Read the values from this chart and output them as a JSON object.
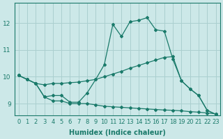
{
  "xlabel": "Humidex (Indice chaleur)",
  "bg_color": "#cce8e8",
  "grid_color": "#aacfcf",
  "line_color": "#1a7a6a",
  "xlim": [
    -0.5,
    23.5
  ],
  "ylim": [
    8.55,
    12.75
  ],
  "yticks": [
    9,
    10,
    11,
    12
  ],
  "xticks": [
    0,
    1,
    2,
    3,
    4,
    5,
    6,
    7,
    8,
    9,
    10,
    11,
    12,
    13,
    14,
    15,
    16,
    17,
    18,
    19,
    20,
    21,
    22,
    23
  ],
  "line_jagged_x": [
    0,
    1,
    2,
    3,
    4,
    5,
    6,
    7,
    8,
    9,
    10,
    11,
    12,
    13,
    14,
    15,
    16,
    17,
    18,
    19,
    20,
    21,
    22,
    23
  ],
  "line_jagged_y": [
    10.05,
    9.9,
    9.75,
    9.25,
    9.3,
    9.3,
    9.05,
    9.05,
    9.4,
    9.9,
    10.45,
    11.95,
    11.5,
    12.05,
    12.1,
    12.2,
    11.75,
    11.7,
    10.65,
    9.85,
    9.55,
    9.3,
    8.75,
    8.6
  ],
  "line_upper_x": [
    0,
    1,
    2,
    3,
    4,
    5,
    6,
    7,
    8,
    9,
    10,
    11,
    12,
    13,
    14,
    15,
    16,
    17,
    18,
    19,
    20,
    21,
    22,
    23
  ],
  "line_upper_y": [
    10.05,
    9.9,
    9.75,
    9.7,
    9.75,
    9.75,
    9.78,
    9.8,
    9.85,
    9.9,
    10.0,
    10.1,
    10.2,
    10.32,
    10.42,
    10.52,
    10.62,
    10.72,
    10.75,
    9.85,
    9.55,
    9.3,
    8.75,
    8.6
  ],
  "line_lower_x": [
    0,
    1,
    2,
    3,
    4,
    5,
    6,
    7,
    8,
    9,
    10,
    11,
    12,
    13,
    14,
    15,
    16,
    17,
    18,
    19,
    20,
    21,
    22,
    23
  ],
  "line_lower_y": [
    10.05,
    9.9,
    9.75,
    9.25,
    9.1,
    9.1,
    9.0,
    9.0,
    9.0,
    8.95,
    8.9,
    8.88,
    8.86,
    8.84,
    8.82,
    8.8,
    8.78,
    8.76,
    8.75,
    8.73,
    8.7,
    8.68,
    8.65,
    8.62
  ],
  "xlabel_fontsize": 7,
  "tick_fontsize": 6,
  "ytick_fontsize": 6.5
}
